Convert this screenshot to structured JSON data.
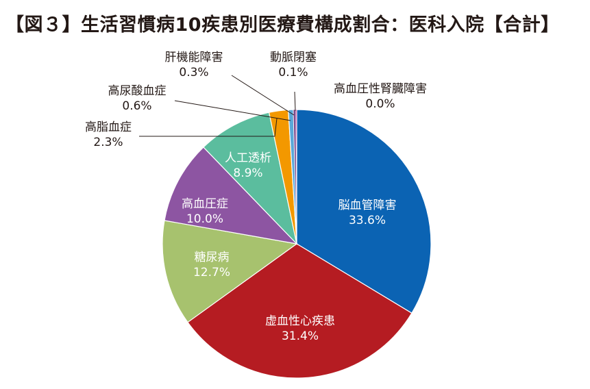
{
  "title": "【図３】生活習慣病10疾患別医療費構成割合：医科入院【合計】",
  "chart_data": {
    "type": "pie",
    "title": "【図３】生活習慣病10疾患別医療費構成割合：医科入院【合計】",
    "unit": "%",
    "slices": [
      {
        "name": "脳血管障害",
        "value": 33.6,
        "label": "33.6%",
        "color": "#0b63b3"
      },
      {
        "name": "虚血性心疾患",
        "value": 31.4,
        "label": "31.4%",
        "color": "#b51c22"
      },
      {
        "name": "糖尿病",
        "value": 12.7,
        "label": "12.7%",
        "color": "#a7c26e"
      },
      {
        "name": "高血圧症",
        "value": 10.0,
        "label": "10.0%",
        "color": "#8d55a2"
      },
      {
        "name": "人工透析",
        "value": 8.9,
        "label": "8.9%",
        "color": "#5bbd9e"
      },
      {
        "name": "高脂血症",
        "value": 2.3,
        "label": "2.3%",
        "color": "#f39800"
      },
      {
        "name": "高尿酸血症",
        "value": 0.6,
        "label": "0.6%",
        "color": "#5aa8d8"
      },
      {
        "name": "肝機能障害",
        "value": 0.3,
        "label": "0.3%",
        "color": "#7d4b8e"
      },
      {
        "name": "動脈閉塞",
        "value": 0.1,
        "label": "0.1%",
        "color": "#e4007f"
      },
      {
        "name": "高血圧性腎臓障害",
        "value": 0.0,
        "label": "0.0%",
        "color": "#1d2088"
      }
    ]
  }
}
